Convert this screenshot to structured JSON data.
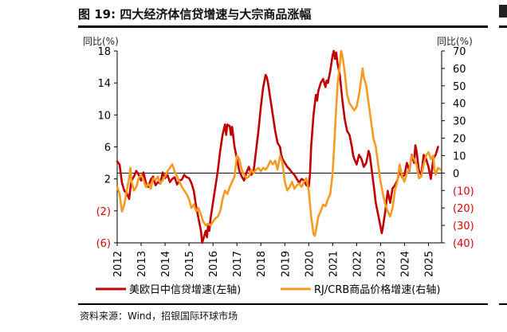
{
  "title": "图 19: 四大经济体信贷增速与大宗商品涨幅",
  "source": "资料来源：Wind，招银国际环球市场",
  "chart_data": {
    "type": "line",
    "left_axis": {
      "label": "同比(%)",
      "ticks": [
        18,
        14,
        10,
        6,
        2,
        -2,
        -6
      ],
      "tick_labels": [
        "18",
        "14",
        "10",
        "6",
        "2",
        "(2)",
        "(6)"
      ],
      "range": [
        -6,
        18
      ]
    },
    "right_axis": {
      "label": "同比(%)",
      "ticks": [
        70,
        60,
        50,
        40,
        30,
        20,
        10,
        0,
        -10,
        -20,
        -30,
        -40
      ],
      "tick_labels": [
        "70",
        "60",
        "50",
        "40",
        "30",
        "20",
        "10",
        "0",
        "(10)",
        "(20)",
        "(30)",
        "(40)"
      ],
      "range": [
        -40,
        70
      ]
    },
    "x_labels": [
      "2012",
      "2013",
      "2014",
      "2015",
      "2016",
      "2017",
      "2018",
      "2019",
      "2020",
      "2021",
      "2022",
      "2023",
      "2024",
      "2025"
    ],
    "x_range": [
      2012,
      2025.55
    ],
    "series": [
      {
        "name": "美欧日中信贷增速(左轴)",
        "axis": "left",
        "color": "#c00000",
        "points": [
          [
            2012.0,
            4.2
          ],
          [
            2012.1,
            3.8
          ],
          [
            2012.2,
            1.5
          ],
          [
            2012.3,
            0.5
          ],
          [
            2012.4,
            0.2
          ],
          [
            2012.5,
            -0.5
          ],
          [
            2012.55,
            0.8
          ],
          [
            2012.6,
            1.8
          ],
          [
            2012.7,
            2.3
          ],
          [
            2012.8,
            3.0
          ],
          [
            2012.9,
            2.5
          ],
          [
            2013.0,
            1.8
          ],
          [
            2013.1,
            2.8
          ],
          [
            2013.2,
            1.5
          ],
          [
            2013.3,
            1.0
          ],
          [
            2013.4,
            1.9
          ],
          [
            2013.5,
            2.3
          ],
          [
            2013.6,
            1.2
          ],
          [
            2013.7,
            1.6
          ],
          [
            2013.8,
            1.4
          ],
          [
            2013.9,
            2.8
          ],
          [
            2014.0,
            2.1
          ],
          [
            2014.1,
            2.5
          ],
          [
            2014.2,
            1.6
          ],
          [
            2014.3,
            2.0
          ],
          [
            2014.4,
            2.2
          ],
          [
            2014.5,
            1.3
          ],
          [
            2014.6,
            1.8
          ],
          [
            2014.7,
            1.9
          ],
          [
            2014.8,
            2.5
          ],
          [
            2014.9,
            2.2
          ],
          [
            2015.0,
            2.1
          ],
          [
            2015.1,
            1.5
          ],
          [
            2015.2,
            0.5
          ],
          [
            2015.3,
            -1.5
          ],
          [
            2015.4,
            -3.0
          ],
          [
            2015.5,
            -4.5
          ],
          [
            2015.55,
            -6.0
          ],
          [
            2015.6,
            -5.5
          ],
          [
            2015.7,
            -4.5
          ],
          [
            2015.75,
            -5.3
          ],
          [
            2015.8,
            -3.8
          ],
          [
            2015.85,
            -4.5
          ],
          [
            2015.9,
            -3.0
          ],
          [
            2016.0,
            -1.0
          ],
          [
            2016.1,
            1.0
          ],
          [
            2016.2,
            3.0
          ],
          [
            2016.3,
            5.5
          ],
          [
            2016.4,
            7.5
          ],
          [
            2016.5,
            8.8
          ],
          [
            2016.55,
            7.5
          ],
          [
            2016.6,
            8.8
          ],
          [
            2016.7,
            8.6
          ],
          [
            2016.75,
            7.5
          ],
          [
            2016.8,
            8.5
          ],
          [
            2016.9,
            6.0
          ],
          [
            2017.0,
            4.5
          ],
          [
            2017.1,
            3.0
          ],
          [
            2017.2,
            2.3
          ],
          [
            2017.3,
            1.8
          ],
          [
            2017.4,
            2.8
          ],
          [
            2017.5,
            3.5
          ],
          [
            2017.6,
            2.5
          ],
          [
            2017.7,
            3.0
          ],
          [
            2017.8,
            5.5
          ],
          [
            2017.9,
            8.0
          ],
          [
            2018.0,
            11.0
          ],
          [
            2018.1,
            13.5
          ],
          [
            2018.2,
            15.0
          ],
          [
            2018.25,
            14.7
          ],
          [
            2018.3,
            14.0
          ],
          [
            2018.4,
            12.0
          ],
          [
            2018.5,
            10.0
          ],
          [
            2018.6,
            8.0
          ],
          [
            2018.7,
            6.5
          ],
          [
            2018.8,
            6.0
          ],
          [
            2018.85,
            5.0
          ],
          [
            2018.9,
            4.5
          ],
          [
            2019.0,
            4.0
          ],
          [
            2019.1,
            3.5
          ],
          [
            2019.2,
            3.2
          ],
          [
            2019.3,
            2.8
          ],
          [
            2019.4,
            2.5
          ],
          [
            2019.5,
            2.0
          ],
          [
            2019.6,
            1.5
          ],
          [
            2019.7,
            2.0
          ],
          [
            2019.8,
            1.8
          ],
          [
            2019.9,
            1.2
          ],
          [
            2020.0,
            1.0
          ],
          [
            2020.05,
            2.5
          ],
          [
            2020.1,
            6.0
          ],
          [
            2020.2,
            10.0
          ],
          [
            2020.3,
            12.5
          ],
          [
            2020.35,
            11.8
          ],
          [
            2020.4,
            13.0
          ],
          [
            2020.5,
            14.0
          ],
          [
            2020.6,
            14.5
          ],
          [
            2020.7,
            13.5
          ],
          [
            2020.75,
            14.3
          ],
          [
            2020.8,
            14.0
          ],
          [
            2020.9,
            15.5
          ],
          [
            2021.0,
            17.5
          ],
          [
            2021.05,
            18.0
          ],
          [
            2021.1,
            17.0
          ],
          [
            2021.15,
            17.8
          ],
          [
            2021.2,
            16.5
          ],
          [
            2021.3,
            15.0
          ],
          [
            2021.4,
            12.0
          ],
          [
            2021.5,
            9.5
          ],
          [
            2021.6,
            8.0
          ],
          [
            2021.7,
            7.5
          ],
          [
            2021.8,
            6.0
          ],
          [
            2021.85,
            5.0
          ],
          [
            2021.9,
            4.5
          ],
          [
            2022.0,
            3.8
          ],
          [
            2022.1,
            5.0
          ],
          [
            2022.2,
            4.5
          ],
          [
            2022.3,
            3.5
          ],
          [
            2022.4,
            4.0
          ],
          [
            2022.5,
            5.5
          ],
          [
            2022.55,
            5.0
          ],
          [
            2022.6,
            3.8
          ],
          [
            2022.7,
            1.5
          ],
          [
            2022.8,
            -1.0
          ],
          [
            2022.9,
            -2.5
          ],
          [
            2023.0,
            -4.0
          ],
          [
            2023.05,
            -4.8
          ],
          [
            2023.1,
            -4.0
          ],
          [
            2023.2,
            -2.0
          ],
          [
            2023.3,
            0.5
          ],
          [
            2023.4,
            -1.0
          ],
          [
            2023.5,
            0.8
          ],
          [
            2023.6,
            1.2
          ],
          [
            2023.7,
            1.8
          ],
          [
            2023.8,
            3.0
          ],
          [
            2023.9,
            2.2
          ],
          [
            2024.0,
            2.5
          ],
          [
            2024.1,
            4.0
          ],
          [
            2024.2,
            3.0
          ],
          [
            2024.3,
            5.0
          ],
          [
            2024.4,
            4.0
          ],
          [
            2024.45,
            6.2
          ],
          [
            2024.5,
            5.5
          ],
          [
            2024.6,
            3.0
          ],
          [
            2024.7,
            2.5
          ],
          [
            2024.8,
            5.0
          ],
          [
            2024.9,
            4.5
          ],
          [
            2025.0,
            3.5
          ],
          [
            2025.1,
            2.0
          ],
          [
            2025.2,
            4.5
          ],
          [
            2025.3,
            5.0
          ],
          [
            2025.4,
            6.0
          ]
        ]
      },
      {
        "name": "RJ/CRB商品价格增速(右轴)",
        "axis": "right",
        "color": "#f59a23",
        "points": [
          [
            2012.0,
            -8
          ],
          [
            2012.1,
            -12
          ],
          [
            2012.2,
            -22
          ],
          [
            2012.3,
            -18
          ],
          [
            2012.4,
            -10
          ],
          [
            2012.5,
            -3
          ],
          [
            2012.55,
            3
          ],
          [
            2012.6,
            -5
          ],
          [
            2012.7,
            -10
          ],
          [
            2012.8,
            -8
          ],
          [
            2012.9,
            -3
          ],
          [
            2013.0,
            -1
          ],
          [
            2013.1,
            -4
          ],
          [
            2013.2,
            -8
          ],
          [
            2013.3,
            -6
          ],
          [
            2013.4,
            -9
          ],
          [
            2013.5,
            -3
          ],
          [
            2013.6,
            -4
          ],
          [
            2013.7,
            -2
          ],
          [
            2013.8,
            -6
          ],
          [
            2013.9,
            -4
          ],
          [
            2014.0,
            -2
          ],
          [
            2014.1,
            1
          ],
          [
            2014.2,
            3
          ],
          [
            2014.3,
            5
          ],
          [
            2014.4,
            1
          ],
          [
            2014.5,
            -2
          ],
          [
            2014.6,
            -5
          ],
          [
            2014.7,
            -8
          ],
          [
            2014.8,
            -10
          ],
          [
            2014.9,
            -12
          ],
          [
            2015.0,
            -15
          ],
          [
            2015.1,
            -20
          ],
          [
            2015.2,
            -18
          ],
          [
            2015.3,
            -22
          ],
          [
            2015.4,
            -20
          ],
          [
            2015.5,
            -24
          ],
          [
            2015.6,
            -28
          ],
          [
            2015.7,
            -30
          ],
          [
            2015.8,
            -29
          ],
          [
            2015.9,
            -30
          ],
          [
            2016.0,
            -28
          ],
          [
            2016.1,
            -26
          ],
          [
            2016.2,
            -25
          ],
          [
            2016.3,
            -22
          ],
          [
            2016.4,
            -15
          ],
          [
            2016.5,
            -10
          ],
          [
            2016.6,
            -12
          ],
          [
            2016.7,
            -8
          ],
          [
            2016.8,
            -5
          ],
          [
            2016.9,
            -2
          ],
          [
            2017.0,
            10
          ],
          [
            2017.1,
            8
          ],
          [
            2017.2,
            2
          ],
          [
            2017.3,
            -1
          ],
          [
            2017.4,
            -3
          ],
          [
            2017.5,
            -2
          ],
          [
            2017.6,
            2
          ],
          [
            2017.7,
            0
          ],
          [
            2017.8,
            2
          ],
          [
            2017.9,
            3
          ],
          [
            2018.0,
            1
          ],
          [
            2018.1,
            3
          ],
          [
            2018.2,
            2
          ],
          [
            2018.3,
            4
          ],
          [
            2018.4,
            7
          ],
          [
            2018.5,
            5
          ],
          [
            2018.6,
            7
          ],
          [
            2018.7,
            2
          ],
          [
            2018.8,
            10
          ],
          [
            2018.9,
            6
          ],
          [
            2019.0,
            -5
          ],
          [
            2019.1,
            -10
          ],
          [
            2019.2,
            -8
          ],
          [
            2019.3,
            -5
          ],
          [
            2019.4,
            -9
          ],
          [
            2019.5,
            -7
          ],
          [
            2019.6,
            -6
          ],
          [
            2019.7,
            -8
          ],
          [
            2019.8,
            -5
          ],
          [
            2019.9,
            -3
          ],
          [
            2020.0,
            -10
          ],
          [
            2020.1,
            -25
          ],
          [
            2020.2,
            -35
          ],
          [
            2020.25,
            -36
          ],
          [
            2020.3,
            -33
          ],
          [
            2020.4,
            -25
          ],
          [
            2020.5,
            -22
          ],
          [
            2020.6,
            -18
          ],
          [
            2020.7,
            -19
          ],
          [
            2020.8,
            -15
          ],
          [
            2020.9,
            -12
          ],
          [
            2021.0,
            0
          ],
          [
            2021.1,
            25
          ],
          [
            2021.2,
            50
          ],
          [
            2021.3,
            62
          ],
          [
            2021.35,
            70
          ],
          [
            2021.4,
            68
          ],
          [
            2021.5,
            58
          ],
          [
            2021.6,
            45
          ],
          [
            2021.7,
            40
          ],
          [
            2021.8,
            38
          ],
          [
            2021.9,
            36
          ],
          [
            2022.0,
            38
          ],
          [
            2022.1,
            45
          ],
          [
            2022.2,
            55
          ],
          [
            2022.25,
            60
          ],
          [
            2022.3,
            55
          ],
          [
            2022.4,
            50
          ],
          [
            2022.5,
            40
          ],
          [
            2022.6,
            30
          ],
          [
            2022.7,
            20
          ],
          [
            2022.8,
            15
          ],
          [
            2022.9,
            5
          ],
          [
            2023.0,
            -5
          ],
          [
            2023.1,
            -12
          ],
          [
            2023.2,
            -18
          ],
          [
            2023.3,
            -22
          ],
          [
            2023.4,
            -25
          ],
          [
            2023.5,
            -20
          ],
          [
            2023.6,
            -10
          ],
          [
            2023.7,
            -5
          ],
          [
            2023.8,
            5
          ],
          [
            2023.9,
            -2
          ],
          [
            2024.0,
            -5
          ],
          [
            2024.1,
            0
          ],
          [
            2024.2,
            2
          ],
          [
            2024.3,
            10
          ],
          [
            2024.4,
            8
          ],
          [
            2024.5,
            5
          ],
          [
            2024.6,
            -3
          ],
          [
            2024.7,
            -2
          ],
          [
            2024.8,
            5
          ],
          [
            2024.9,
            10
          ],
          [
            2025.0,
            12
          ],
          [
            2025.1,
            8
          ],
          [
            2025.2,
            10
          ],
          [
            2025.25,
            2
          ],
          [
            2025.3,
            -1
          ],
          [
            2025.4,
            3
          ],
          [
            2025.5,
            2
          ]
        ]
      }
    ],
    "legend": [
      "美欧日中信贷增速(左轴)",
      "RJ/CRB商品价格增速(右轴)"
    ],
    "legend_position": "bottom",
    "grid": false
  }
}
